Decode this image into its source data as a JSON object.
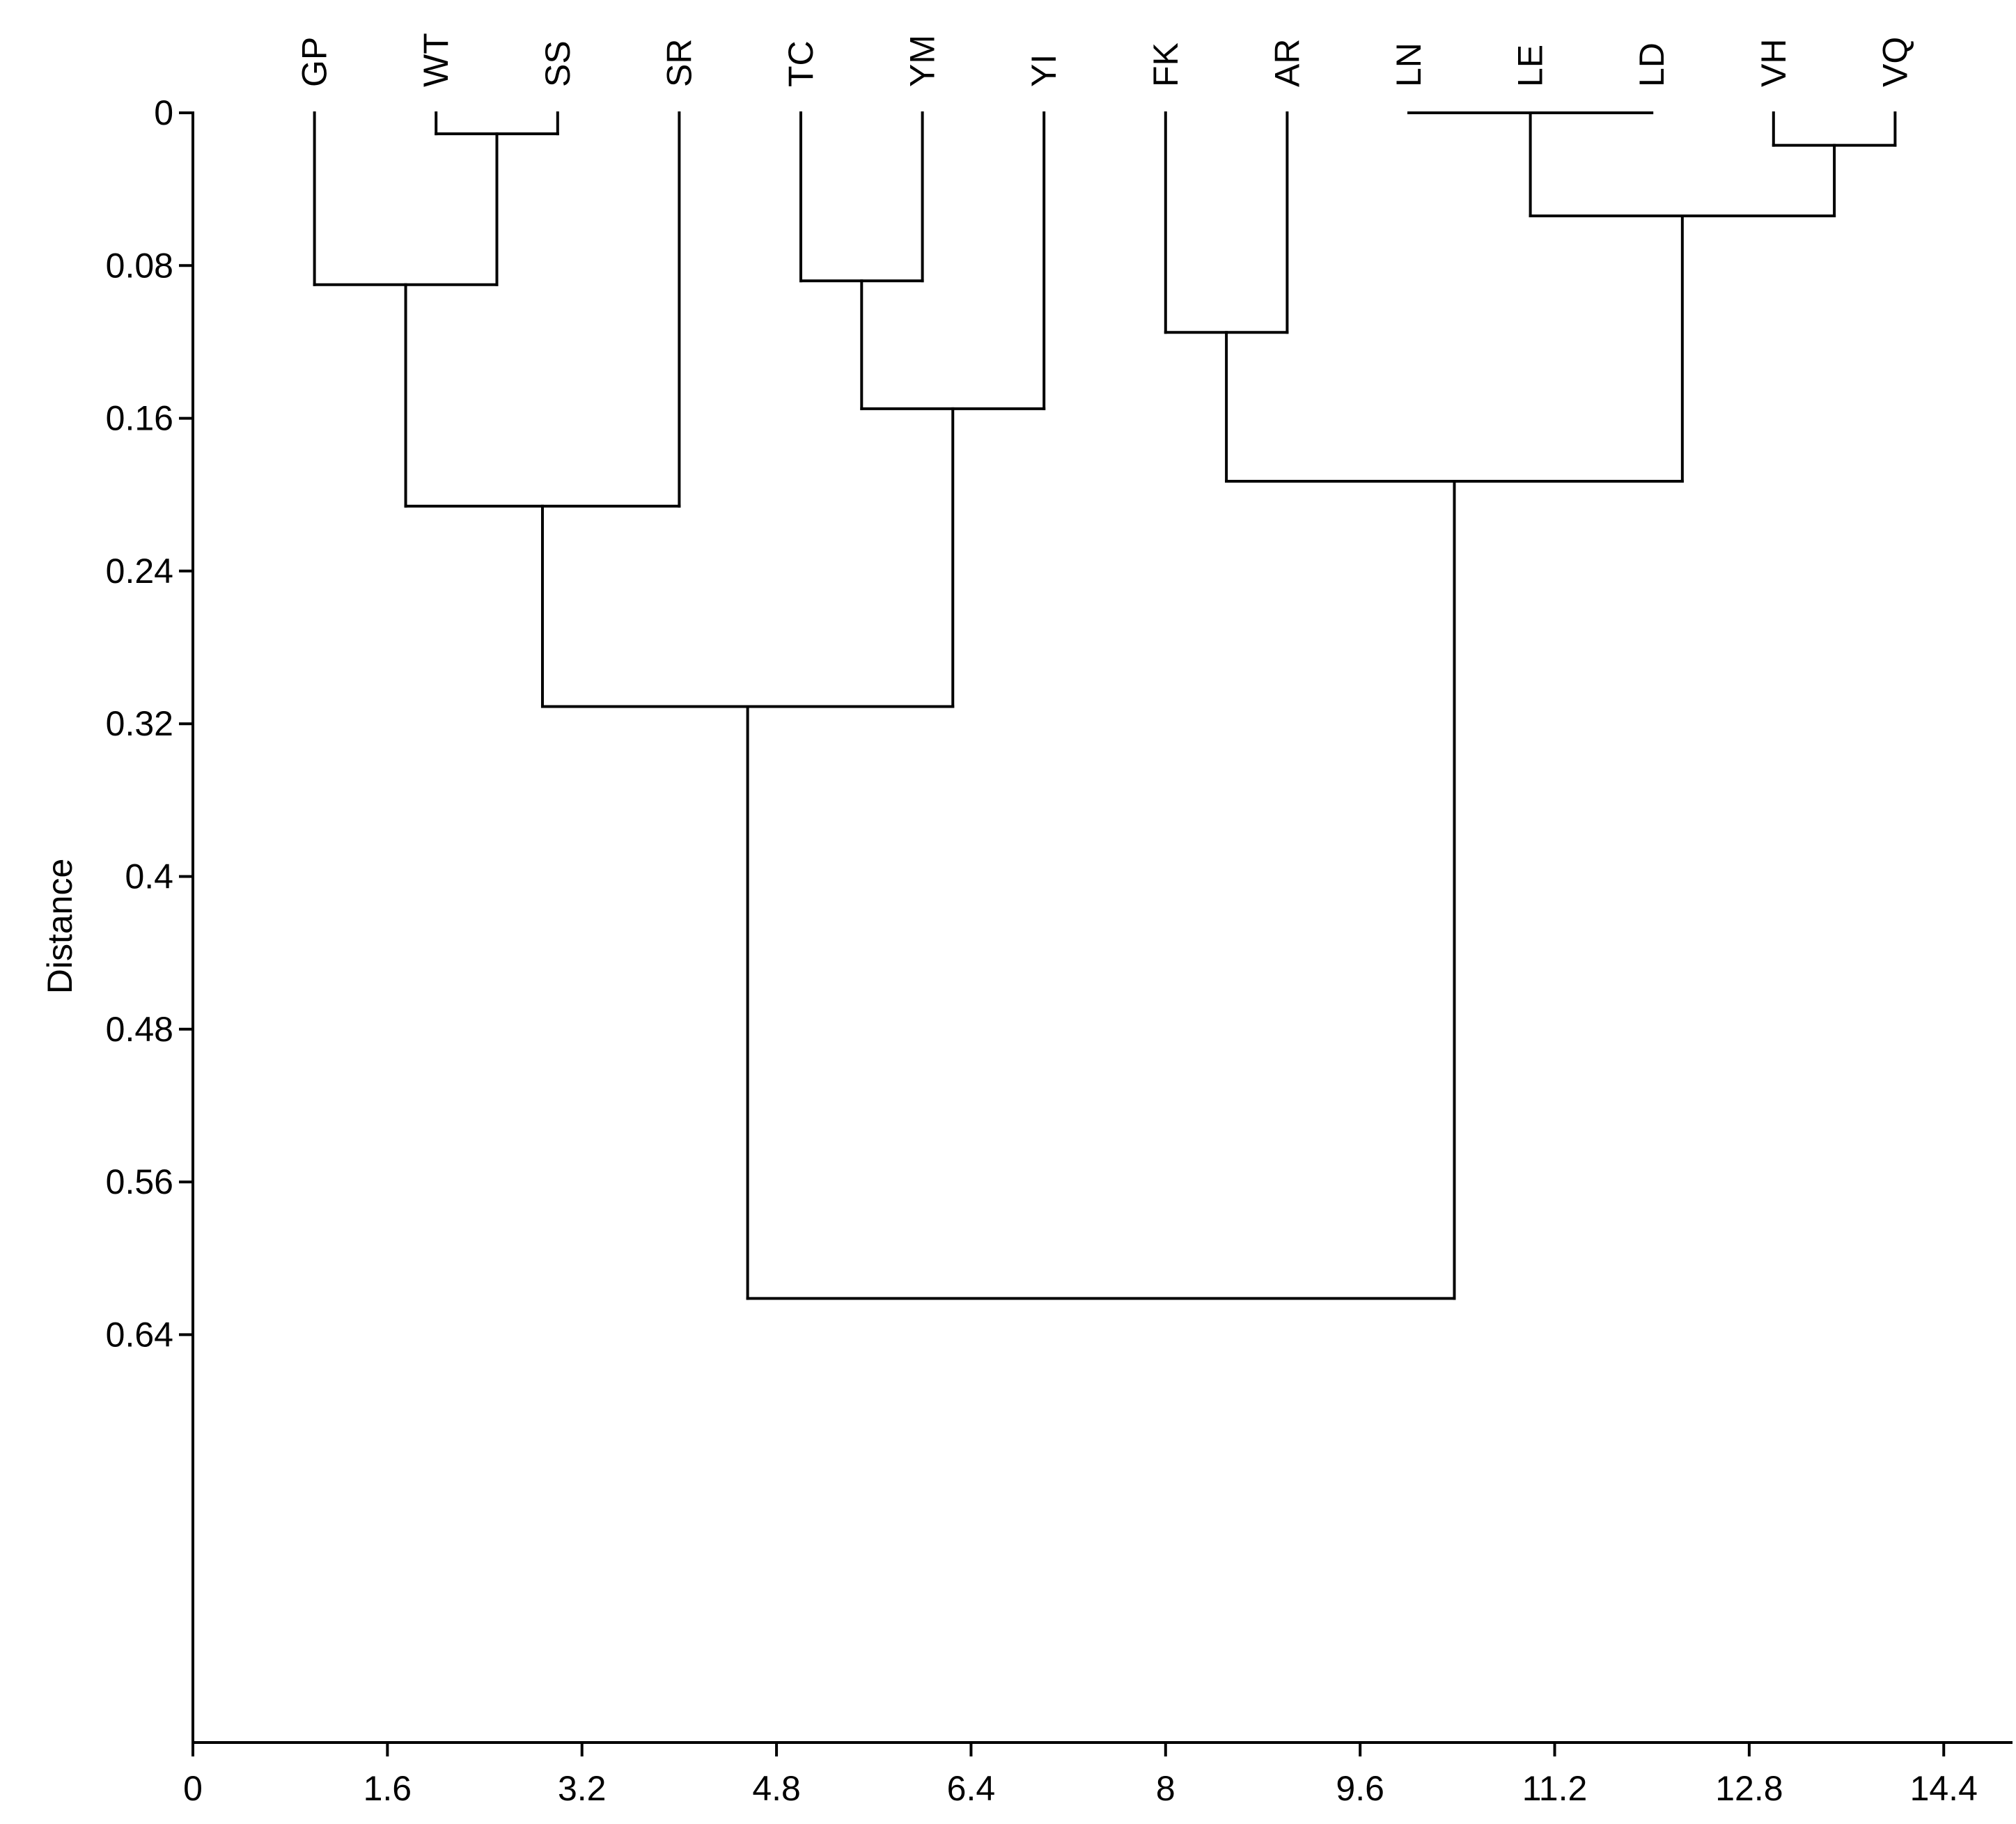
{
  "chart_data": {
    "type": "dendrogram",
    "ylabel": "Distance",
    "xlabel": "",
    "y_axis_inverted": true,
    "xlim": [
      0,
      15
    ],
    "ylim": [
      0,
      0.68
    ],
    "xticks": [
      "0",
      "1.6",
      "3.2",
      "4.8",
      "6.4",
      "8",
      "9.6",
      "11.2",
      "12.8",
      "14.4"
    ],
    "yticks": [
      "0",
      "0.08",
      "0.16",
      "0.24",
      "0.32",
      "0.4",
      "0.48",
      "0.56",
      "0.64"
    ],
    "leaves": [
      {
        "label": "GP",
        "x": 1
      },
      {
        "label": "WT",
        "x": 2
      },
      {
        "label": "SS",
        "x": 3
      },
      {
        "label": "SR",
        "x": 4
      },
      {
        "label": "TC",
        "x": 5
      },
      {
        "label": "YM",
        "x": 6
      },
      {
        "label": "YI",
        "x": 7
      },
      {
        "label": "FK",
        "x": 8
      },
      {
        "label": "AR",
        "x": 9
      },
      {
        "label": "LN",
        "x": 10
      },
      {
        "label": "LE",
        "x": 11
      },
      {
        "label": "LD",
        "x": 12
      },
      {
        "label": "VH",
        "x": 13
      },
      {
        "label": "VQ",
        "x": 14
      }
    ],
    "merges": [
      {
        "id": "n1",
        "children": [
          "WT",
          "SS"
        ],
        "height": 0.011
      },
      {
        "id": "n2",
        "children": [
          "GP",
          "n1"
        ],
        "height": 0.09
      },
      {
        "id": "n3",
        "children": [
          "n2",
          "SR"
        ],
        "height": 0.206
      },
      {
        "id": "n4",
        "children": [
          "TC",
          "YM"
        ],
        "height": 0.088
      },
      {
        "id": "n5",
        "children": [
          "n4",
          "YI"
        ],
        "height": 0.155
      },
      {
        "id": "n6",
        "children": [
          "n3",
          "n5"
        ],
        "height": 0.311
      },
      {
        "id": "n7",
        "children": [
          "FK",
          "AR"
        ],
        "height": 0.115
      },
      {
        "id": "n8",
        "children": [
          "LN",
          "LE",
          "LD"
        ],
        "height": 0.0
      },
      {
        "id": "n9",
        "children": [
          "VH",
          "VQ"
        ],
        "height": 0.017
      },
      {
        "id": "n10",
        "children": [
          "n8",
          "n9"
        ],
        "height": 0.054
      },
      {
        "id": "n11",
        "children": [
          "n7",
          "n10"
        ],
        "height": 0.193
      },
      {
        "id": "n12",
        "children": [
          "n6",
          "n11"
        ],
        "height": 0.621
      }
    ]
  }
}
